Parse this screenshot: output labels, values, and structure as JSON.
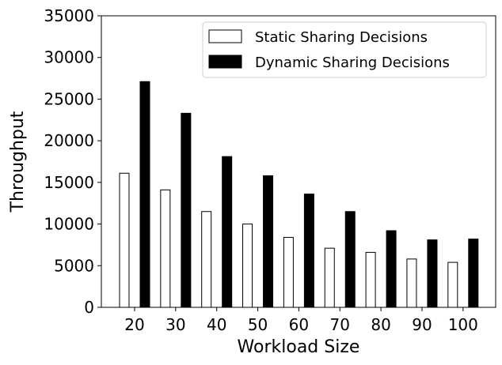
{
  "chart_data": {
    "type": "bar",
    "xlabel": "Workload Size",
    "ylabel": "Throughput",
    "categories": [
      "20",
      "30",
      "40",
      "50",
      "60",
      "70",
      "80",
      "90",
      "100"
    ],
    "series": [
      {
        "name": "Static Sharing Decisions",
        "values": [
          16100,
          14100,
          11500,
          10000,
          8400,
          7100,
          6600,
          5800,
          5400
        ],
        "fill": "#ffffff",
        "stroke": "#000000"
      },
      {
        "name": "Dynamic Sharing Decisions",
        "values": [
          27100,
          23300,
          18100,
          15800,
          13600,
          11500,
          9200,
          8100,
          8200
        ],
        "fill": "#000000",
        "stroke": "#000000"
      }
    ],
    "ylim": [
      0,
      35000
    ],
    "yticks": [
      "0",
      "5000",
      "10000",
      "15000",
      "20000",
      "25000",
      "30000",
      "35000"
    ],
    "grid": false,
    "legend_position": "top-right"
  }
}
